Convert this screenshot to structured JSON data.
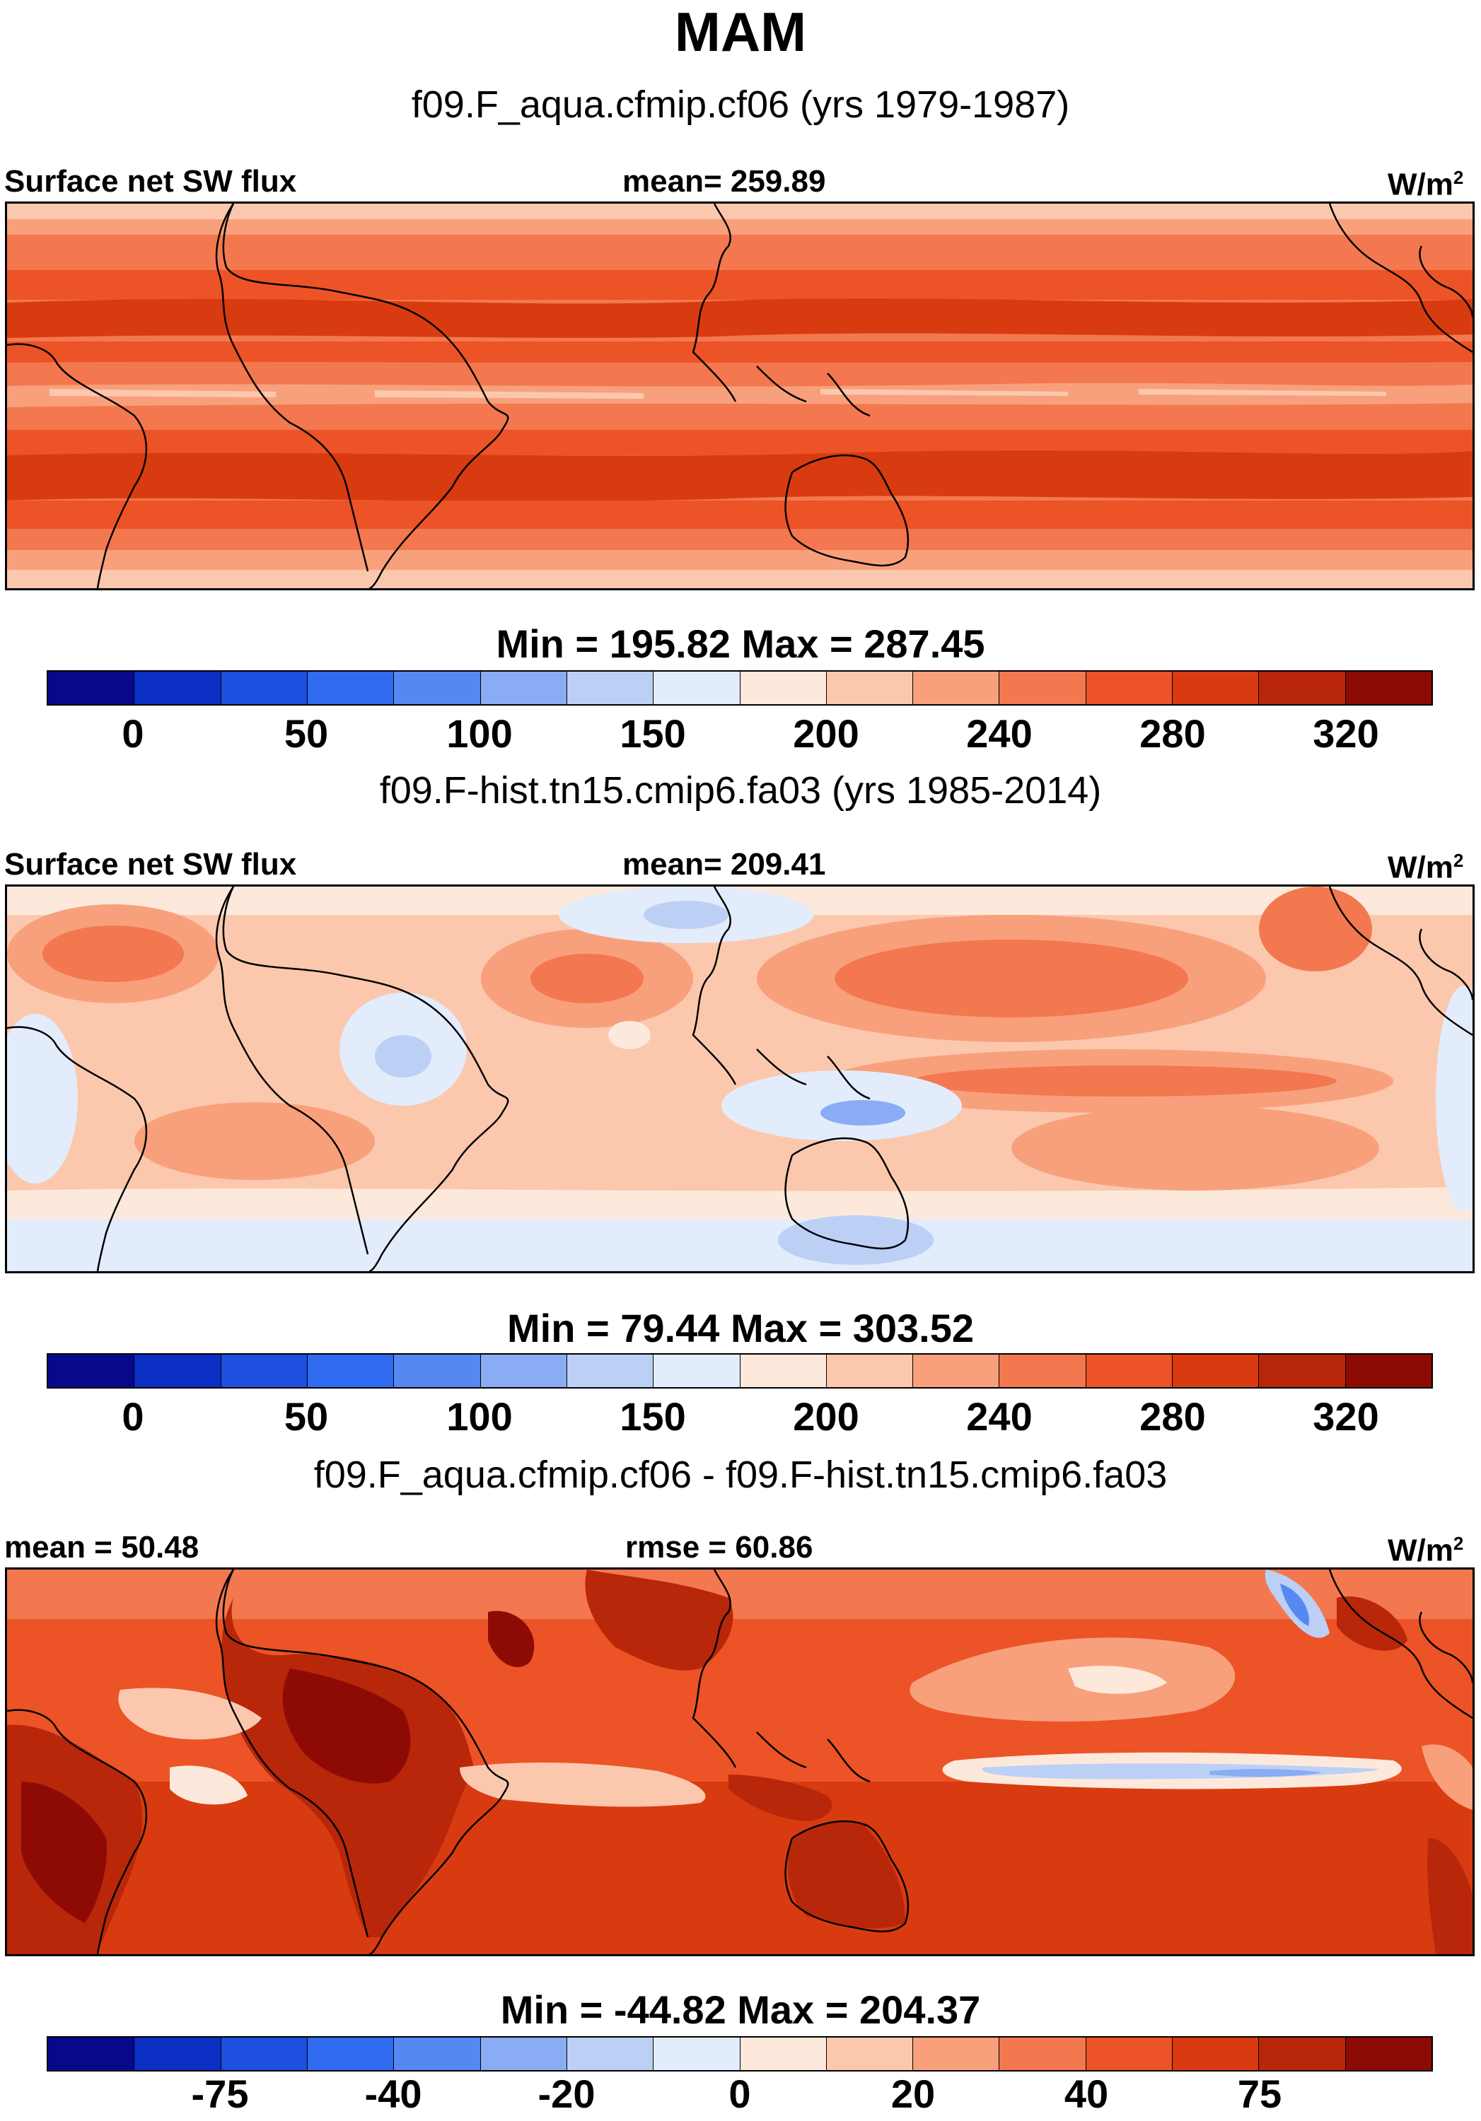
{
  "title": "MAM",
  "panels": [
    {
      "case_title": "f09.F_aqua.cfmip.cf06 (yrs 1979-1987)",
      "left_label": "Surface net SW flux",
      "center_label": "mean= 259.89",
      "units": "W/m",
      "units_sup": "2",
      "min_max": "Min = 195.82 Max = 287.45",
      "colorbar_ticks": [
        "0",
        "50",
        "100",
        "150",
        "200",
        "240",
        "280",
        "320"
      ]
    },
    {
      "case_title": "f09.F-hist.tn15.cmip6.fa03 (yrs 1985-2014)",
      "left_label": "Surface net SW flux",
      "center_label": "mean= 209.41",
      "units": "W/m",
      "units_sup": "2",
      "min_max": "Min =  79.44 Max = 303.52",
      "colorbar_ticks": [
        "0",
        "50",
        "100",
        "150",
        "200",
        "240",
        "280",
        "320"
      ]
    },
    {
      "case_title": "f09.F_aqua.cfmip.cf06 - f09.F-hist.tn15.cmip6.fa03",
      "left_label": "mean =  50.48",
      "center_label": "rmse =  60.86",
      "units": "W/m",
      "units_sup": "2",
      "min_max": "Min = -44.82 Max = 204.37",
      "colorbar_ticks": [
        "-75",
        "-40",
        "-20",
        "0",
        "20",
        "40",
        "75"
      ]
    }
  ],
  "colors": {
    "colorbar": [
      "#08088a",
      "#0b2fc2",
      "#1d4fe0",
      "#2f6bf0",
      "#5688f2",
      "#8aacf4",
      "#bcd0f6",
      "#e2ecfb",
      "#fde9dc",
      "#fbc8ae",
      "#f8a07c",
      "#f3784f",
      "#ec5326",
      "#d93b10",
      "#b82709",
      "#8e0b05"
    ],
    "land_outline": "#000000"
  }
}
